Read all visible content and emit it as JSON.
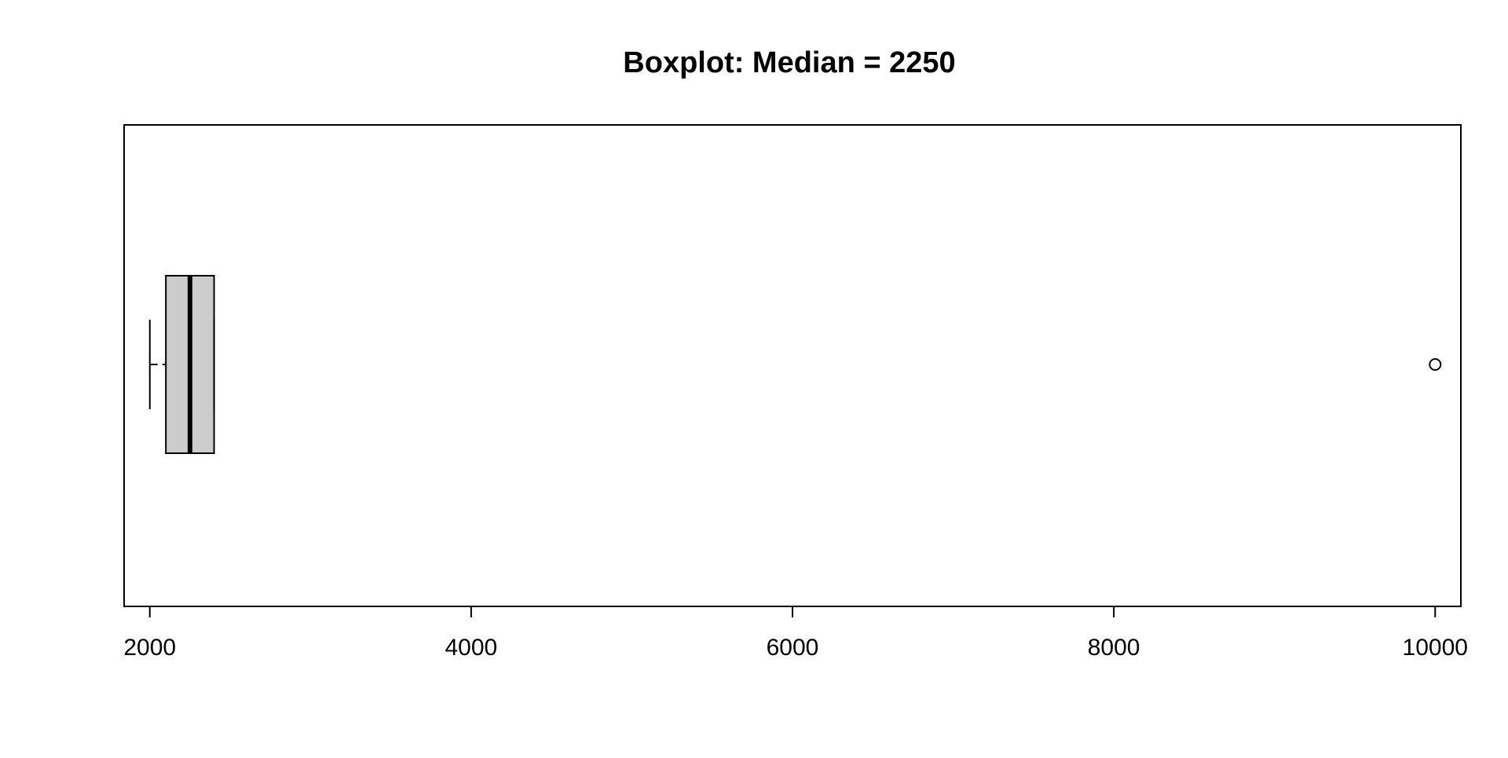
{
  "chart_data": {
    "type": "boxplot",
    "orientation": "horizontal",
    "title": "Boxplot: Median = 2250",
    "xlabel": "",
    "ylabel": "",
    "xlim": [
      1840,
      10160
    ],
    "ticks": [
      2000,
      4000,
      6000,
      8000,
      10000
    ],
    "tick_labels": [
      "2000",
      "4000",
      "6000",
      "8000",
      "10000"
    ],
    "box": {
      "whisker_low": 2000,
      "q1": 2100,
      "median": 2250,
      "q3": 2400,
      "whisker_high": 2400
    },
    "outliers": [
      10000
    ],
    "grid": false,
    "colors": {
      "box_fill": "#cccccc",
      "stroke": "#000000",
      "background": "#ffffff"
    }
  }
}
